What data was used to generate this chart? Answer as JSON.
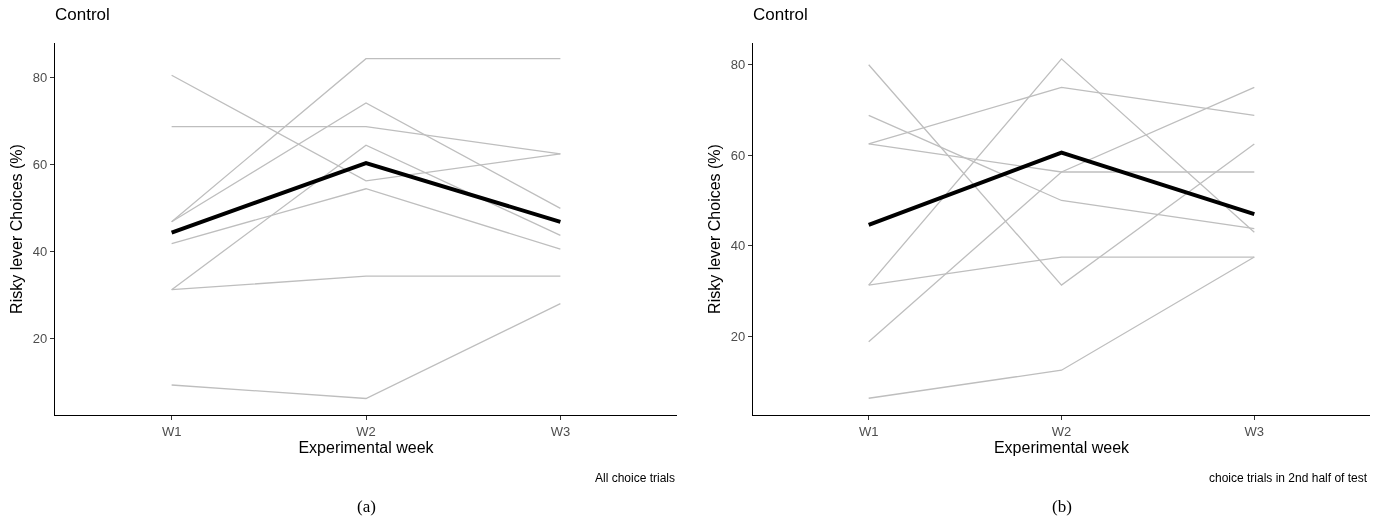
{
  "chart_data": [
    {
      "type": "line",
      "title": "Control",
      "xlabel": "Experimental week",
      "ylabel": "Risky lever Choices (%)",
      "categories": [
        "W1",
        "W2",
        "W3"
      ],
      "ylim": [
        2.5,
        88
      ],
      "yticks": [
        20,
        40,
        60,
        80
      ],
      "grid": false,
      "marker": "none",
      "line_style": "solid",
      "annotations": [
        "All choice trials",
        "(a)"
      ],
      "series": [
        {
          "color": "#bebebe",
          "values": [
            80.6,
            56.3,
            62.5
          ]
        },
        {
          "color": "#bebebe",
          "values": [
            68.8,
            68.8,
            62.5
          ]
        },
        {
          "color": "#bebebe",
          "values": [
            46.9,
            84.4,
            84.4
          ]
        },
        {
          "color": "#bebebe",
          "values": [
            46.9,
            74.2,
            50
          ]
        },
        {
          "color": "#bebebe",
          "values": [
            31.3,
            64.5,
            43.8
          ]
        },
        {
          "color": "#bebebe",
          "values": [
            41.9,
            54.5,
            40.6
          ]
        },
        {
          "color": "#bebebe",
          "values": [
            31.3,
            34.4,
            34.4
          ]
        },
        {
          "color": "#bebebe",
          "values": [
            9.4,
            6.3,
            28.1
          ]
        },
        {
          "color": "#000000",
          "values": [
            44.4,
            60.4,
            46.9
          ]
        }
      ]
    },
    {
      "type": "line",
      "title": "Control",
      "xlabel": "Experimental week",
      "ylabel": "Risky lever Choices (%)",
      "categories": [
        "W1",
        "W2",
        "W3"
      ],
      "ylim": [
        2.6,
        84.8
      ],
      "yticks": [
        20,
        40,
        60,
        80
      ],
      "grid": false,
      "marker": "none",
      "line_style": "solid",
      "annotations": [
        "choice trials in 2nd half of test",
        "(b)"
      ],
      "series": [
        {
          "color": "#bebebe",
          "values": [
            80,
            31.3,
            62.5
          ]
        },
        {
          "color": "#bebebe",
          "values": [
            62.5,
            75,
            68.8
          ]
        },
        {
          "color": "#bebebe",
          "values": [
            68.8,
            50,
            43.8
          ]
        },
        {
          "color": "#bebebe",
          "values": [
            62.5,
            56.3,
            56.3
          ]
        },
        {
          "color": "#bebebe",
          "values": [
            31.3,
            81.3,
            43
          ]
        },
        {
          "color": "#bebebe",
          "values": [
            31.3,
            37.5,
            37.5
          ]
        },
        {
          "color": "#bebebe",
          "values": [
            18.8,
            56.3,
            75
          ]
        },
        {
          "color": "#bebebe",
          "values": [
            6.3,
            12.5,
            37.5
          ]
        },
        {
          "color": "#000000",
          "values": [
            44.6,
            60.6,
            47
          ]
        }
      ]
    }
  ]
}
